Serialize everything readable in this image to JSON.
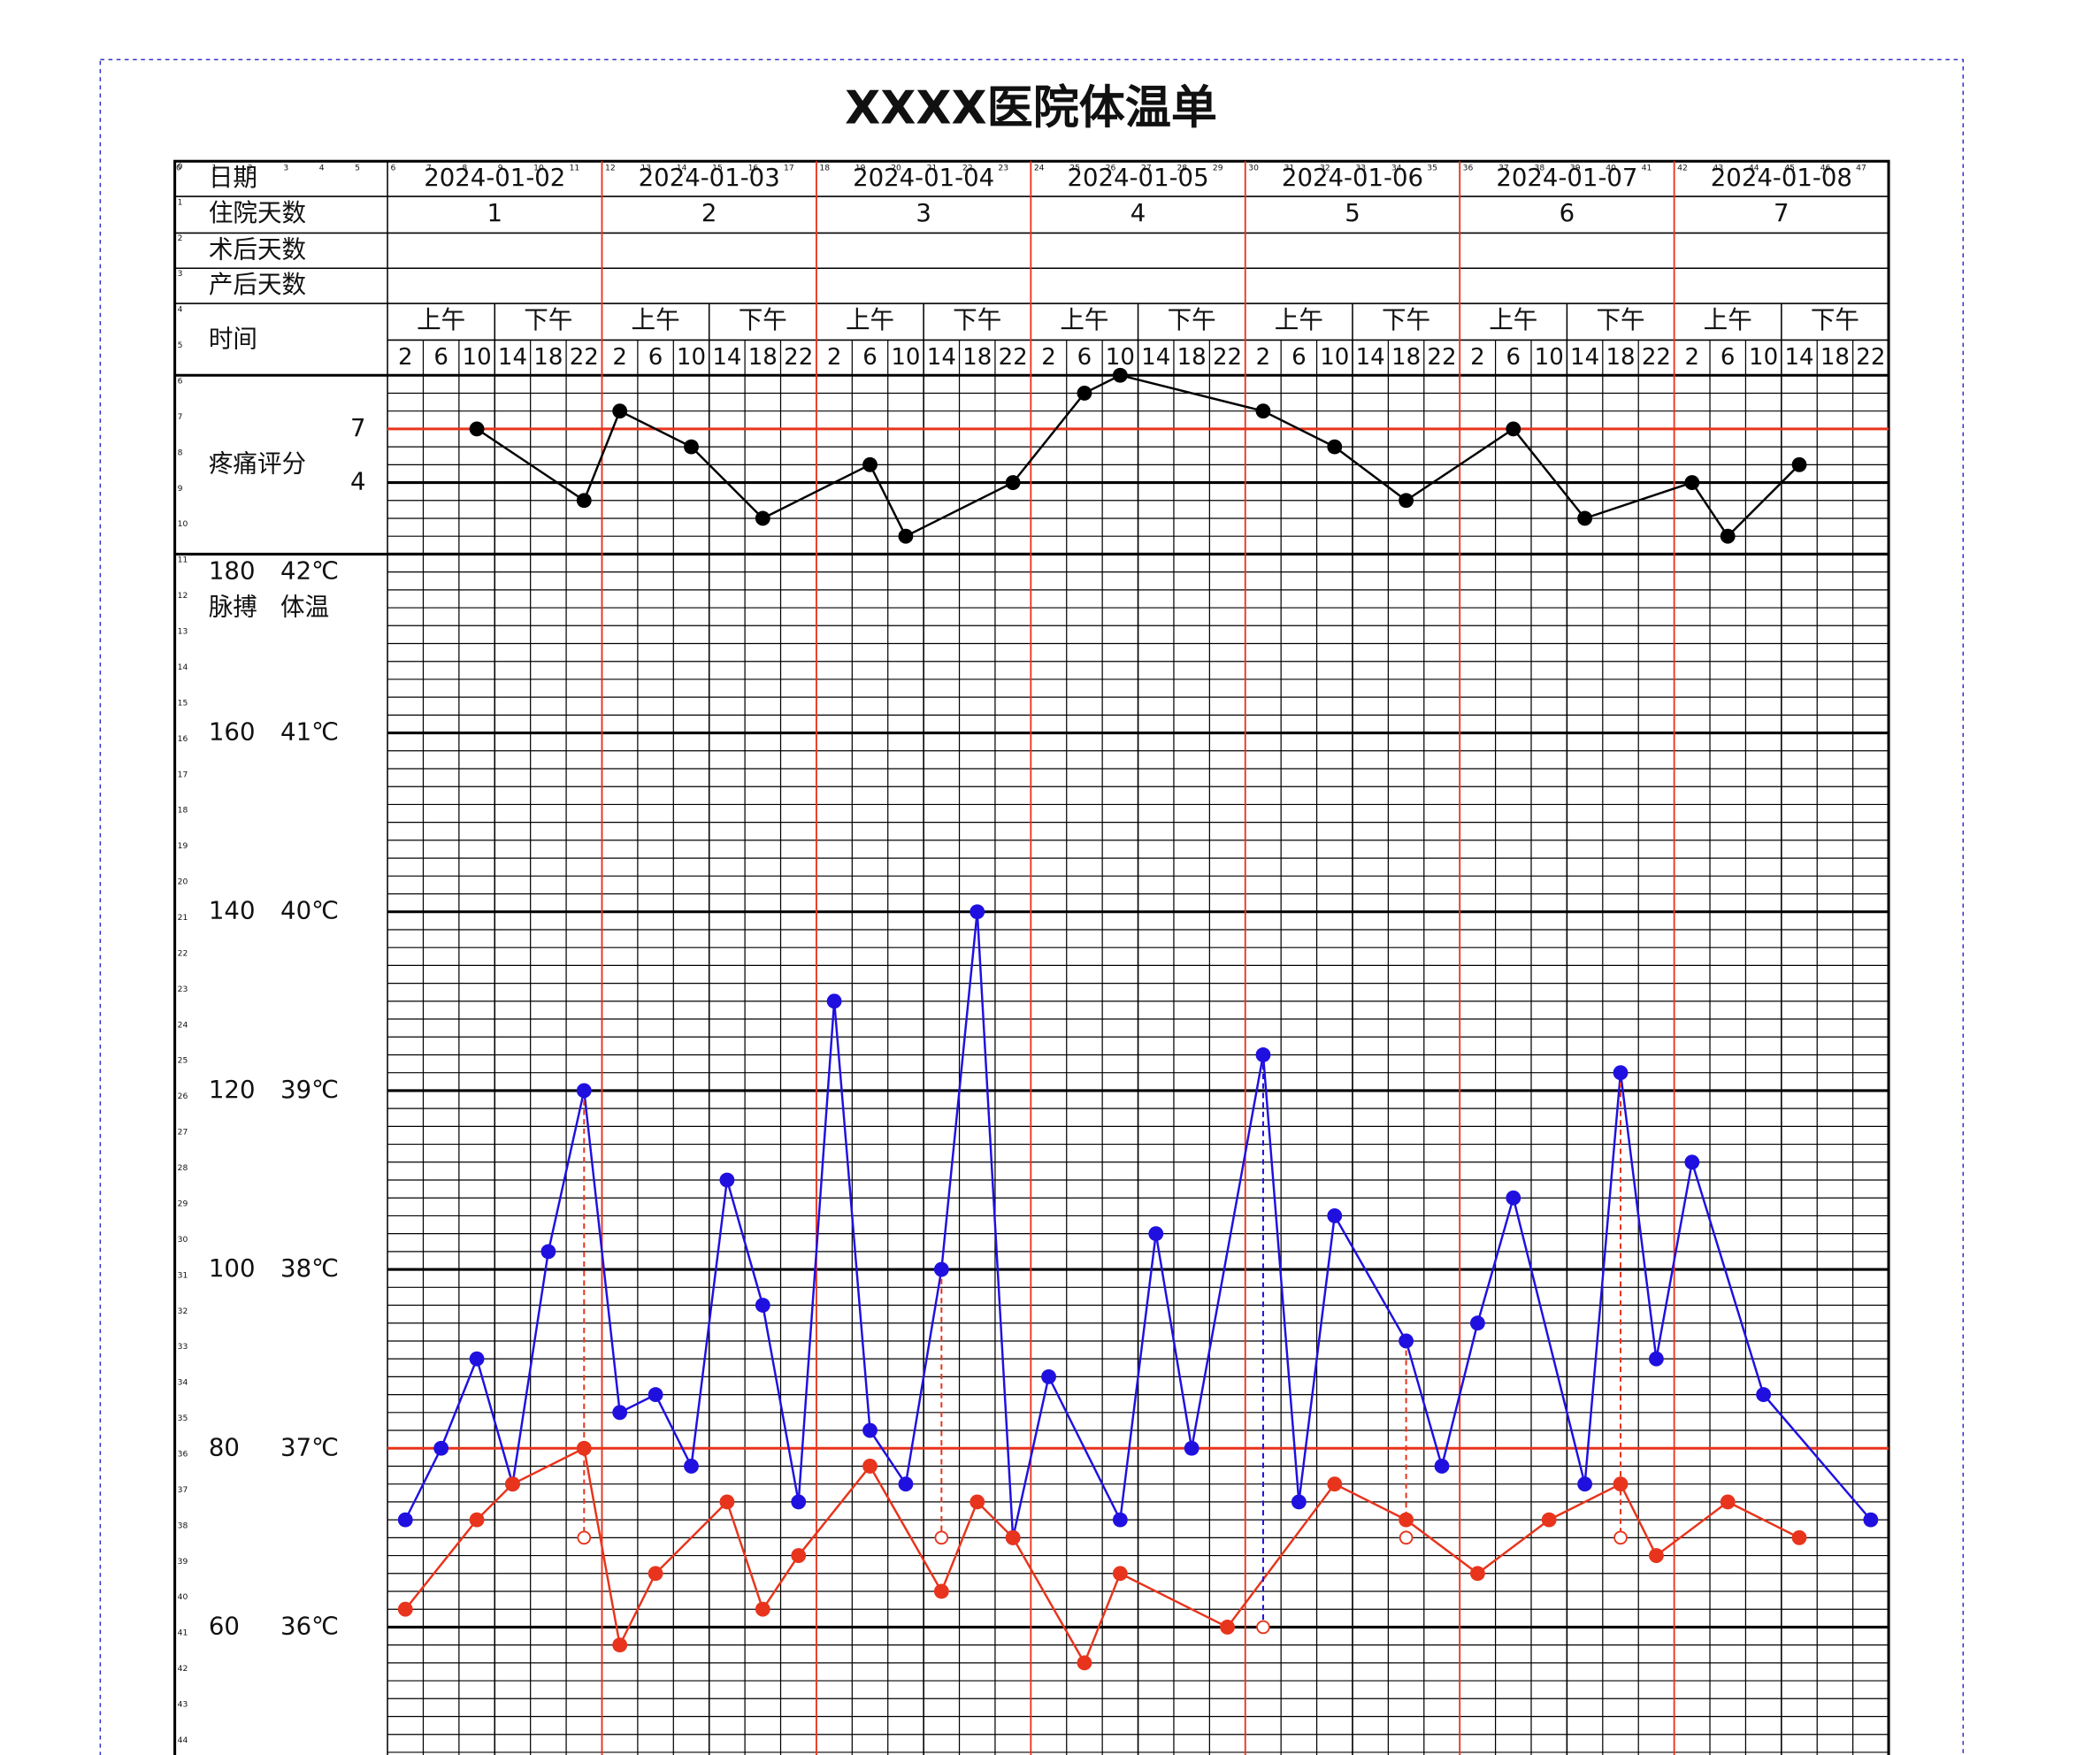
{
  "chart_data": {
    "type": "line",
    "title": "XXXX医院体温单",
    "row_labels": [
      "日期",
      "住院天数",
      "术后天数",
      "产后天数",
      "时间"
    ],
    "dates": [
      "2024-01-02",
      "2024-01-03",
      "2024-01-04",
      "2024-01-05",
      "2024-01-06",
      "2024-01-07",
      "2024-01-08"
    ],
    "hospital_days": [
      1,
      2,
      3,
      4,
      5,
      6,
      7
    ],
    "periods": [
      "上午",
      "下午"
    ],
    "hours": [
      2,
      6,
      10,
      14,
      18,
      22
    ],
    "top_indices": [
      0,
      1,
      2,
      3,
      4,
      5,
      6,
      7,
      8,
      9,
      10,
      11,
      12,
      13,
      14,
      15,
      16,
      17,
      18,
      19,
      20,
      21,
      22,
      23,
      24,
      25,
      26,
      27,
      28,
      29,
      30,
      31,
      32,
      33,
      34,
      35,
      36,
      37,
      38,
      39,
      40,
      41,
      42,
      43,
      44,
      45,
      46,
      47
    ],
    "side_indices": [
      0,
      1,
      2,
      3,
      4,
      5,
      6,
      7,
      8,
      9,
      10,
      11,
      12,
      13,
      14,
      15,
      16,
      17,
      18,
      19,
      20,
      21,
      22,
      23,
      24,
      25,
      26,
      27,
      28,
      29,
      30,
      31,
      32,
      33,
      34,
      35,
      36,
      37,
      38,
      39,
      40,
      41,
      42,
      43,
      44
    ],
    "pain": {
      "name": "疼痛评分",
      "color": "#000000",
      "ylim": [
        0,
        10
      ],
      "yticks": [
        4,
        7
      ],
      "red_line": 7,
      "values": [
        null,
        null,
        7,
        null,
        null,
        3,
        8,
        null,
        6,
        null,
        2,
        null,
        null,
        5,
        1,
        null,
        null,
        4,
        null,
        9,
        10,
        null,
        null,
        null,
        8,
        null,
        6,
        null,
        3,
        null,
        null,
        7,
        null,
        2,
        null,
        null,
        4,
        1,
        null,
        5,
        null,
        null
      ]
    },
    "pulse": {
      "name": "脉搏",
      "color": "#1f10e0",
      "ylim": [
        40,
        180
      ],
      "yticks": [
        60,
        80,
        100,
        120,
        140,
        160,
        180
      ],
      "values": [
        72,
        80,
        90,
        76,
        102,
        120,
        84,
        86,
        78,
        110,
        96,
        74,
        130,
        82,
        76,
        100,
        140,
        70,
        88,
        null,
        72,
        104,
        80,
        null,
        124,
        74,
        106,
        null,
        92,
        78,
        94,
        108,
        null,
        76,
        122,
        90,
        112,
        null,
        86,
        null,
        null,
        72
      ]
    },
    "temperature": {
      "name": "体温",
      "color": "#e8341c",
      "ylim": [
        35,
        42
      ],
      "red_line": 37,
      "yticks": [
        {
          "value": 36,
          "label": "36℃"
        },
        {
          "value": 37,
          "label": "37℃"
        },
        {
          "value": 38,
          "label": "38℃"
        },
        {
          "value": 39,
          "label": "39℃"
        },
        {
          "value": 40,
          "label": "40℃"
        },
        {
          "value": 41,
          "label": "41℃"
        },
        {
          "value": 42,
          "label": "42℃"
        }
      ],
      "values": [
        36.1,
        null,
        36.6,
        36.8,
        null,
        37.0,
        35.9,
        36.3,
        null,
        36.7,
        36.1,
        36.4,
        null,
        36.9,
        null,
        36.2,
        36.7,
        36.5,
        null,
        35.8,
        36.3,
        null,
        null,
        36.0,
        null,
        null,
        36.8,
        null,
        36.6,
        null,
        36.3,
        null,
        36.6,
        null,
        36.8,
        36.4,
        null,
        36.7,
        null,
        36.5,
        null,
        null
      ]
    },
    "cooled": {
      "values": [
        null,
        null,
        null,
        null,
        null,
        36.5,
        null,
        null,
        null,
        null,
        null,
        null,
        null,
        null,
        null,
        36.5,
        null,
        null,
        null,
        null,
        null,
        null,
        null,
        null,
        36.0,
        null,
        null,
        null,
        36.5,
        null,
        null,
        null,
        null,
        null,
        36.5,
        null,
        null,
        null,
        null,
        null,
        null,
        null
      ]
    }
  }
}
